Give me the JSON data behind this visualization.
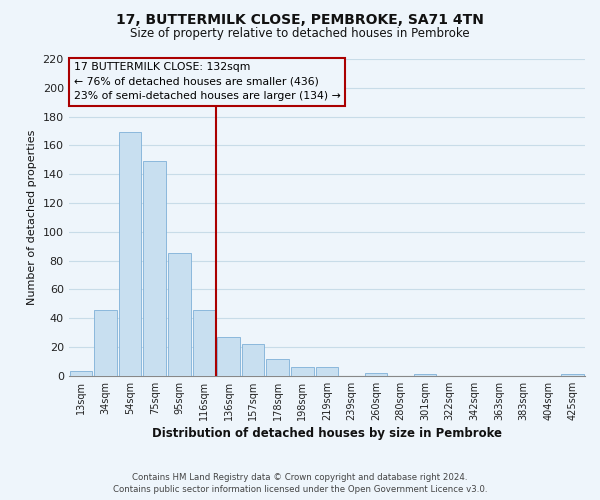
{
  "title": "17, BUTTERMILK CLOSE, PEMBROKE, SA71 4TN",
  "subtitle": "Size of property relative to detached houses in Pembroke",
  "xlabel": "Distribution of detached houses by size in Pembroke",
  "ylabel": "Number of detached properties",
  "footer_line1": "Contains HM Land Registry data © Crown copyright and database right 2024.",
  "footer_line2": "Contains public sector information licensed under the Open Government Licence v3.0.",
  "bar_labels": [
    "13sqm",
    "34sqm",
    "54sqm",
    "75sqm",
    "95sqm",
    "116sqm",
    "136sqm",
    "157sqm",
    "178sqm",
    "198sqm",
    "219sqm",
    "239sqm",
    "260sqm",
    "280sqm",
    "301sqm",
    "322sqm",
    "342sqm",
    "363sqm",
    "383sqm",
    "404sqm",
    "425sqm"
  ],
  "bar_values": [
    3,
    46,
    169,
    149,
    85,
    46,
    27,
    22,
    12,
    6,
    6,
    0,
    2,
    0,
    1,
    0,
    0,
    0,
    0,
    0,
    1
  ],
  "bar_color": "#c8dff0",
  "bar_edge_color": "#7fb0d8",
  "vline_index": 6,
  "vline_color": "#aa0000",
  "annotation_title": "17 BUTTERMILK CLOSE: 132sqm",
  "annotation_line1": "← 76% of detached houses are smaller (436)",
  "annotation_line2": "23% of semi-detached houses are larger (134) →",
  "annotation_box_edge": "#aa0000",
  "ylim": [
    0,
    220
  ],
  "yticks": [
    0,
    20,
    40,
    60,
    80,
    100,
    120,
    140,
    160,
    180,
    200,
    220
  ],
  "grid_color": "#c8dce8",
  "background_color": "#eef5fb"
}
